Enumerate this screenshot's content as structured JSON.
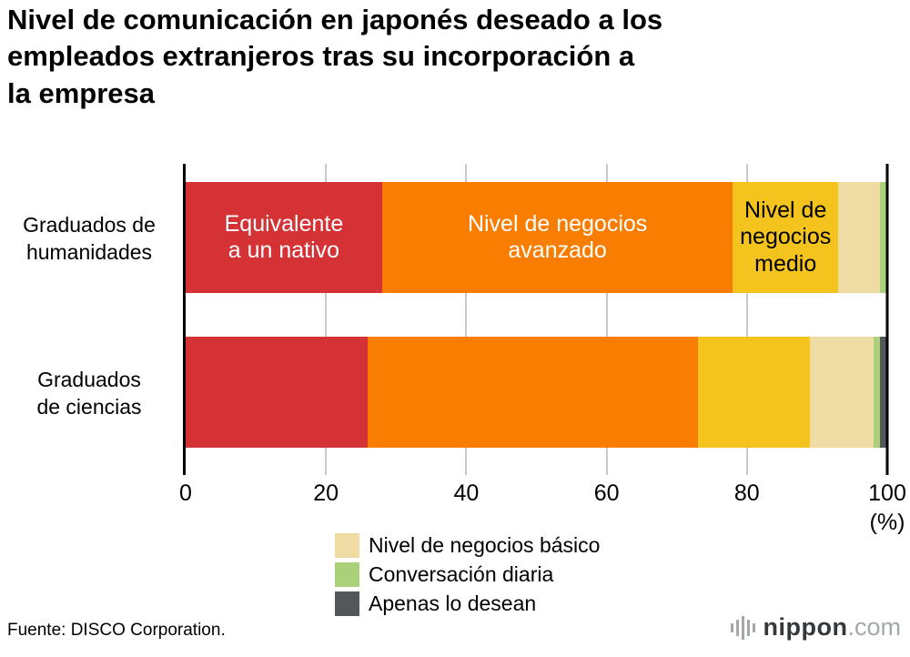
{
  "title": "Nivel de comunicación en japonés deseado a los\nempleados extranjeros tras su incorporación a\nla empresa",
  "chart_data": {
    "type": "bar",
    "orientation": "horizontal",
    "stacked": true,
    "xlim": [
      0,
      100
    ],
    "x_ticks": [
      0,
      20,
      40,
      60,
      80,
      100
    ],
    "x_unit": "(%)",
    "gridlines": true,
    "categories": [
      "Graduados de\nhumanidades",
      "Graduados\nde ciencias"
    ],
    "series": [
      {
        "name": "Equivalente a un nativo",
        "color": "#d43235",
        "values": [
          28,
          26
        ]
      },
      {
        "name": "Nivel de negocios avanzado",
        "color": "#f97d00",
        "values": [
          50,
          47
        ]
      },
      {
        "name": "Nivel de negocios medio",
        "color": "#f5c31d",
        "values": [
          15,
          16
        ]
      },
      {
        "name": "Nivel de negocios básico",
        "color": "#efdba4",
        "values": [
          6,
          9
        ]
      },
      {
        "name": "Conversación diaria",
        "color": "#aad079",
        "values": [
          1,
          1
        ]
      },
      {
        "name": "Apenas lo desean",
        "color": "#54575a",
        "values": [
          0,
          1
        ]
      }
    ],
    "segment_labels": [
      {
        "row": 0,
        "series": 0,
        "text": "Equivalente\na un nativo",
        "text_color": "#ffffff"
      },
      {
        "row": 0,
        "series": 1,
        "text": "Nivel de negocios\navanzado",
        "text_color": "#ffffff"
      },
      {
        "row": 0,
        "series": 2,
        "text": "Nivel de\nnegocios\nmedio",
        "text_color": "#000000"
      }
    ],
    "legend": [
      {
        "label": "Nivel de negocios básico",
        "color": "#efdba4"
      },
      {
        "label": "Conversación diaria",
        "color": "#aad079"
      },
      {
        "label": "Apenas lo desean",
        "color": "#54575a"
      }
    ],
    "legend_position": "bottom"
  },
  "footer": {
    "source": "Fuente: DISCO Corporation.",
    "logo": {
      "text": "nippon",
      "suffix": ".com"
    }
  }
}
